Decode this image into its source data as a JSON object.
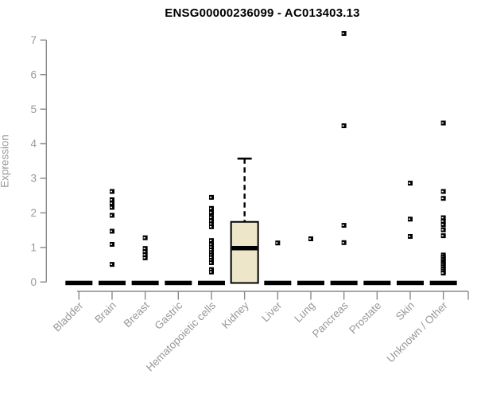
{
  "chart_data": {
    "type": "boxplot",
    "title": "ENSG00000236099 - AC013403.13",
    "ylabel": "Expression",
    "xlabel": "",
    "ylim": [
      0,
      7
    ],
    "yticks": [
      0,
      1,
      2,
      3,
      4,
      5,
      6,
      7
    ],
    "grid": "off",
    "legend": "none",
    "categories": [
      "Bladder",
      "Brain",
      "Breast",
      "Gastric",
      "Hematopoietic cells",
      "Kidney",
      "Liver",
      "Lung",
      "Pancreas",
      "Prostate",
      "Skin",
      "Unknown / Other"
    ],
    "boxes": [
      {
        "category": "Bladder",
        "q1": 0,
        "median": 0,
        "q3": 0,
        "whisker_low": 0,
        "whisker_high": 0,
        "outliers": []
      },
      {
        "category": "Brain",
        "q1": 0,
        "median": 0,
        "q3": 0,
        "whisker_low": 0,
        "whisker_high": 0,
        "outliers": [
          2.62,
          2.38,
          2.28,
          2.16,
          1.93,
          1.47,
          1.09,
          0.51
        ]
      },
      {
        "category": "Breast",
        "q1": 0,
        "median": 0,
        "q3": 0,
        "whisker_low": 0,
        "whisker_high": 0,
        "outliers": [
          1.28,
          0.97,
          0.88,
          0.79,
          0.7
        ]
      },
      {
        "category": "Gastric",
        "q1": 0,
        "median": 0,
        "q3": 0,
        "whisker_low": 0,
        "whisker_high": 0,
        "outliers": []
      },
      {
        "category": "Hematopoietic cells",
        "q1": 0,
        "median": 0,
        "q3": 0,
        "whisker_low": 0,
        "whisker_high": 0,
        "outliers": [
          2.45,
          2.13,
          2.01,
          1.87,
          1.77,
          1.68,
          1.6,
          1.2,
          1.09,
          1.01,
          0.93,
          0.85,
          0.78,
          0.71,
          0.63,
          0.56,
          0.36,
          0.29
        ]
      },
      {
        "category": "Kidney",
        "q1": 0,
        "median": 0.98,
        "q3": 1.74,
        "whisker_low": 0,
        "whisker_high": 3.57,
        "outliers": []
      },
      {
        "category": "Liver",
        "q1": 0,
        "median": 0,
        "q3": 0,
        "whisker_low": 0,
        "whisker_high": 0,
        "outliers": [
          1.13
        ]
      },
      {
        "category": "Lung",
        "q1": 0,
        "median": 0,
        "q3": 0,
        "whisker_low": 0,
        "whisker_high": 0,
        "outliers": [
          1.25
        ]
      },
      {
        "category": "Pancreas",
        "q1": 0,
        "median": 0,
        "q3": 0,
        "whisker_low": 0,
        "whisker_high": 0,
        "outliers": [
          7.19,
          4.52,
          1.64,
          1.14
        ]
      },
      {
        "category": "Prostate",
        "q1": 0,
        "median": 0,
        "q3": 0,
        "whisker_low": 0,
        "whisker_high": 0,
        "outliers": []
      },
      {
        "category": "Skin",
        "q1": 0,
        "median": 0,
        "q3": 0,
        "whisker_low": 0,
        "whisker_high": 0,
        "outliers": [
          2.86,
          1.82,
          1.32
        ]
      },
      {
        "category": "Unknown / Other",
        "q1": 0,
        "median": 0,
        "q3": 0,
        "whisker_low": 0,
        "whisker_high": 0,
        "outliers": [
          4.6,
          2.62,
          2.42,
          1.86,
          1.76,
          1.66,
          1.51,
          1.34,
          0.78,
          0.72,
          0.66,
          0.6,
          0.55,
          0.5,
          0.44,
          0.38,
          0.32,
          0.26
        ]
      }
    ],
    "colors": {
      "box_fill": "#ede6c9",
      "box_stroke": "#000000",
      "median": "#000000",
      "outlier": "#000000",
      "axis": "#8a8a8a",
      "tick_label": "#989898",
      "title": "#000000",
      "background": "#ffffff"
    }
  }
}
